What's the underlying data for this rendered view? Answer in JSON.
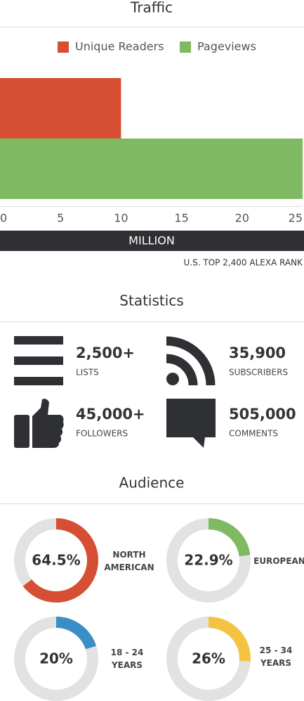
{
  "chart_data": [
    {
      "type": "bar",
      "orientation": "horizontal",
      "title": "Traffic",
      "categories": [
        "Unique Readers",
        "Pageviews"
      ],
      "values": [
        10,
        25
      ],
      "colors": [
        "#d64f35",
        "#7fb961"
      ],
      "xlim": [
        0,
        25
      ],
      "xticks": [
        0,
        5,
        10,
        15,
        20,
        25
      ],
      "x_label": "MILLION",
      "annotation": "U.S. TOP 2,400 ALEXA RANK"
    },
    {
      "type": "donut",
      "categories": [
        "NORTH AMERICAN"
      ],
      "values": [
        64.5
      ],
      "value_labels": [
        "64.5%"
      ],
      "color": "#d64f35",
      "ylim": [
        0,
        100
      ]
    },
    {
      "type": "donut",
      "categories": [
        "EUROPEAN"
      ],
      "values": [
        22.9
      ],
      "value_labels": [
        "22.9%"
      ],
      "color": "#7fb961",
      "ylim": [
        0,
        100
      ]
    },
    {
      "type": "donut",
      "categories": [
        "18 - 24 YEARS"
      ],
      "values": [
        20
      ],
      "value_labels": [
        "20%"
      ],
      "color": "#3b8dc5",
      "ylim": [
        0,
        100
      ]
    },
    {
      "type": "donut",
      "categories": [
        "25 - 34 YEARS"
      ],
      "values": [
        26
      ],
      "value_labels": [
        "26%"
      ],
      "color": "#f5c342",
      "ylim": [
        0,
        100
      ]
    }
  ],
  "statistics": {
    "title": "Statistics",
    "items": [
      {
        "value": "2,500+",
        "label": "LISTS"
      },
      {
        "value": "35,900",
        "label": "SUBSCRIBERS"
      },
      {
        "value": "45,000+",
        "label": "FOLLOWERS"
      },
      {
        "value": "505,000",
        "label": "COMMENTS"
      }
    ]
  },
  "audience": {
    "title": "Audience"
  }
}
